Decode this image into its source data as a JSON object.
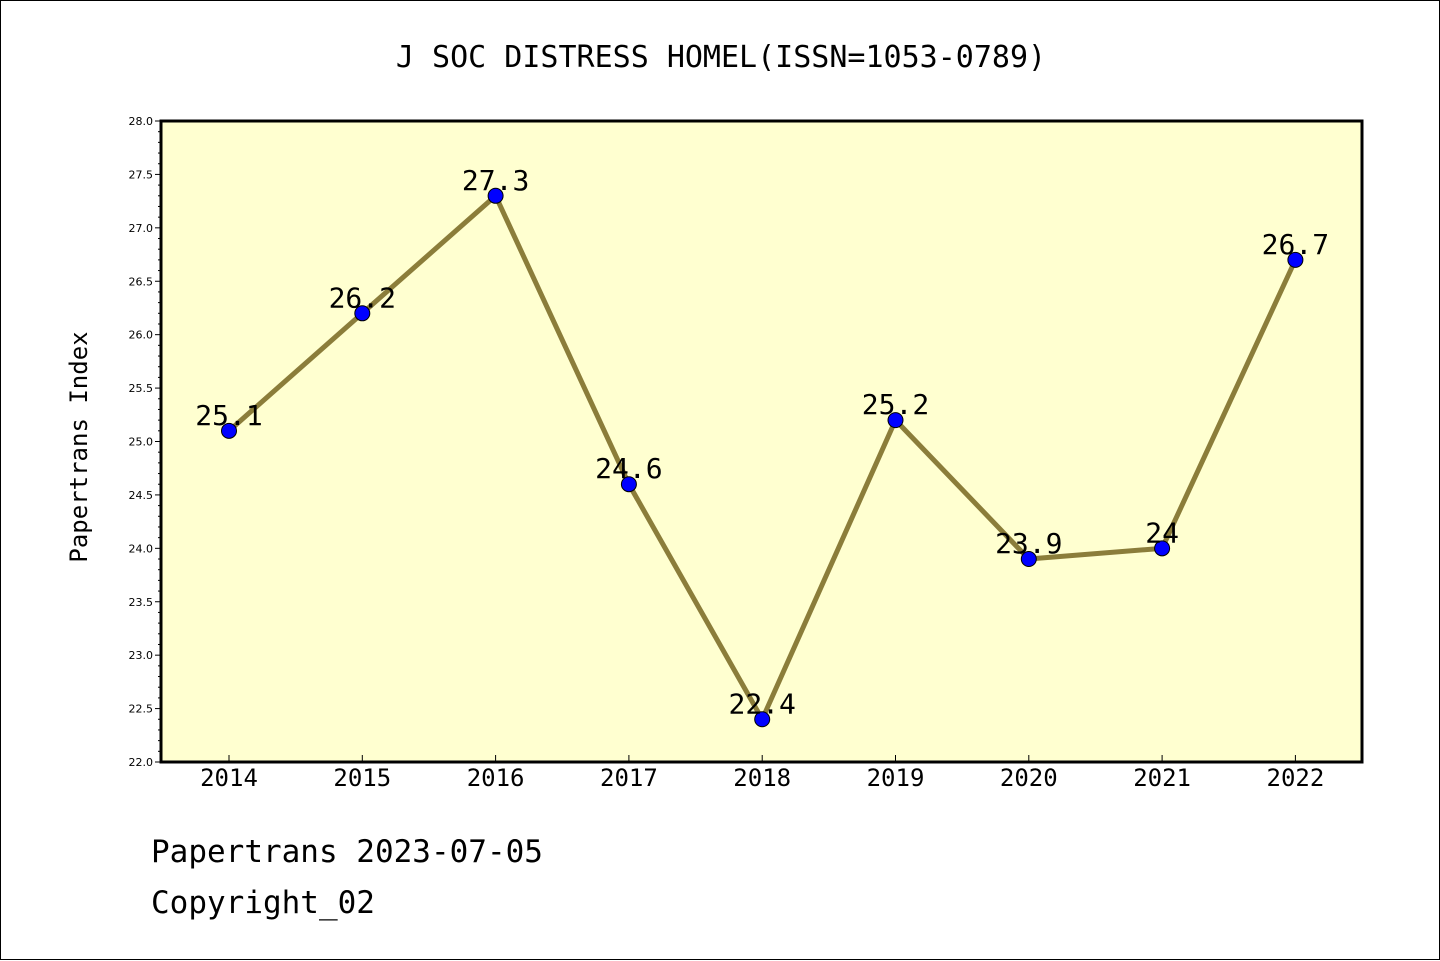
{
  "chart_data": {
    "type": "line",
    "title": "J SOC DISTRESS HOMEL(ISSN=1053-0789)",
    "ylabel": "Papertrans Index",
    "xlabel": "",
    "categories": [
      "2014",
      "2015",
      "2016",
      "2017",
      "2018",
      "2019",
      "2020",
      "2021",
      "2022"
    ],
    "series": [
      {
        "values": [
          25.1,
          26.2,
          27.3,
          24.6,
          22.4,
          25.2,
          23.9,
          24.0,
          26.7
        ],
        "labels": [
          "25.1",
          "26.2",
          "27.3",
          "24.6",
          "22.4",
          "25.2",
          "23.9",
          "24",
          "26.7"
        ]
      }
    ],
    "ylim": [
      22.0,
      28.0
    ],
    "yticks": [
      "22.0",
      "22.5",
      "23.0",
      "23.5",
      "24.0",
      "24.5",
      "25.0",
      "25.5",
      "26.0",
      "26.5",
      "27.0",
      "27.5",
      "28.0"
    ],
    "colors": {
      "line": "#8b7d3a",
      "marker": "#0000ff",
      "plot_bg": "#ffffd0"
    },
    "grid": false
  },
  "footer": {
    "source": "Papertrans 2023-07-05",
    "copyright": "Copyright_02"
  }
}
